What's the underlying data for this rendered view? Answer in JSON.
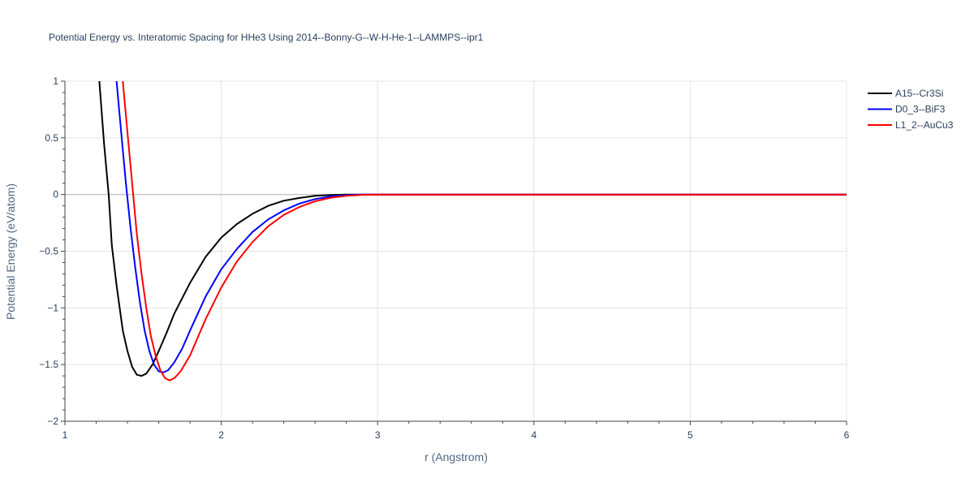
{
  "chart_data": {
    "type": "line",
    "title": "Potential Energy vs. Interatomic Spacing for HHe3 Using 2014--Bonny-G--W-H-He-1--LAMMPS--ipr1",
    "xlabel": "r (Angstrom)",
    "ylabel": "Potential Energy (eV/atom)",
    "xlim": [
      1,
      6
    ],
    "ylim": [
      -2,
      1
    ],
    "x_ticks": [
      1,
      2,
      3,
      4,
      5,
      6
    ],
    "x_tick_labels": [
      "1",
      "2",
      "3",
      "4",
      "5",
      "6"
    ],
    "y_ticks": [
      1,
      0.5,
      0,
      -0.5,
      -1,
      -1.5,
      -2
    ],
    "y_tick_labels": [
      "1",
      "0.5",
      "0",
      "−0.5",
      "−1",
      "−1.5",
      "−2"
    ],
    "grid": true,
    "legend_position": "top-right",
    "series": [
      {
        "name": "A15--Cr3Si",
        "color": "#000000",
        "points": [
          [
            1.22,
            1.0
          ],
          [
            1.25,
            0.45
          ],
          [
            1.28,
            0.0
          ],
          [
            1.3,
            -0.45
          ],
          [
            1.33,
            -0.8
          ],
          [
            1.37,
            -1.2
          ],
          [
            1.4,
            -1.38
          ],
          [
            1.43,
            -1.52
          ],
          [
            1.46,
            -1.59
          ],
          [
            1.49,
            -1.6
          ],
          [
            1.52,
            -1.58
          ],
          [
            1.56,
            -1.5
          ],
          [
            1.6,
            -1.38
          ],
          [
            1.65,
            -1.22
          ],
          [
            1.7,
            -1.05
          ],
          [
            1.8,
            -0.78
          ],
          [
            1.9,
            -0.55
          ],
          [
            2.0,
            -0.38
          ],
          [
            2.1,
            -0.26
          ],
          [
            2.2,
            -0.17
          ],
          [
            2.3,
            -0.1
          ],
          [
            2.4,
            -0.055
          ],
          [
            2.5,
            -0.03
          ],
          [
            2.6,
            -0.012
          ],
          [
            2.7,
            -0.004
          ],
          [
            2.8,
            -0.001
          ],
          [
            2.9,
            0.0
          ],
          [
            3.0,
            0.0
          ],
          [
            6.0,
            0.0
          ]
        ]
      },
      {
        "name": "D0_3--BiF3",
        "color": "#0000ff",
        "points": [
          [
            1.33,
            1.0
          ],
          [
            1.36,
            0.55
          ],
          [
            1.39,
            0.1
          ],
          [
            1.42,
            -0.3
          ],
          [
            1.45,
            -0.65
          ],
          [
            1.48,
            -0.95
          ],
          [
            1.51,
            -1.2
          ],
          [
            1.54,
            -1.38
          ],
          [
            1.57,
            -1.5
          ],
          [
            1.6,
            -1.56
          ],
          [
            1.63,
            -1.57
          ],
          [
            1.66,
            -1.55
          ],
          [
            1.7,
            -1.48
          ],
          [
            1.75,
            -1.36
          ],
          [
            1.8,
            -1.2
          ],
          [
            1.9,
            -0.9
          ],
          [
            2.0,
            -0.66
          ],
          [
            2.1,
            -0.48
          ],
          [
            2.2,
            -0.33
          ],
          [
            2.3,
            -0.22
          ],
          [
            2.4,
            -0.14
          ],
          [
            2.5,
            -0.08
          ],
          [
            2.6,
            -0.04
          ],
          [
            2.7,
            -0.017
          ],
          [
            2.8,
            -0.006
          ],
          [
            2.9,
            -0.001
          ],
          [
            3.0,
            0.0
          ],
          [
            6.0,
            0.0
          ]
        ]
      },
      {
        "name": "L1_2--AuCu3",
        "color": "#ff0000",
        "points": [
          [
            1.37,
            1.0
          ],
          [
            1.4,
            0.55
          ],
          [
            1.43,
            0.1
          ],
          [
            1.46,
            -0.35
          ],
          [
            1.49,
            -0.7
          ],
          [
            1.52,
            -1.0
          ],
          [
            1.55,
            -1.25
          ],
          [
            1.58,
            -1.42
          ],
          [
            1.61,
            -1.55
          ],
          [
            1.64,
            -1.62
          ],
          [
            1.67,
            -1.64
          ],
          [
            1.7,
            -1.62
          ],
          [
            1.74,
            -1.56
          ],
          [
            1.8,
            -1.42
          ],
          [
            1.9,
            -1.1
          ],
          [
            2.0,
            -0.82
          ],
          [
            2.1,
            -0.59
          ],
          [
            2.2,
            -0.42
          ],
          [
            2.3,
            -0.28
          ],
          [
            2.4,
            -0.18
          ],
          [
            2.5,
            -0.11
          ],
          [
            2.6,
            -0.06
          ],
          [
            2.7,
            -0.028
          ],
          [
            2.8,
            -0.011
          ],
          [
            2.9,
            -0.003
          ],
          [
            3.0,
            0.0
          ],
          [
            6.0,
            0.0
          ]
        ]
      }
    ]
  }
}
